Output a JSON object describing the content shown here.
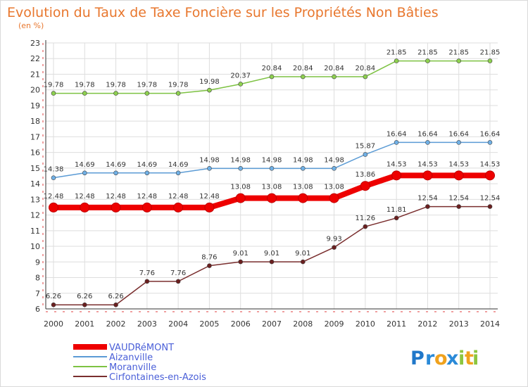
{
  "chart_data": {
    "type": "line",
    "title": "Evolution du Taux de Taxe Foncière sur les Propriétés Non Bâties",
    "subtitle": "(en %)",
    "xlabel": "",
    "ylabel": "",
    "x": [
      "2000",
      "2001",
      "2002",
      "2003",
      "2004",
      "2005",
      "2006",
      "2007",
      "2008",
      "2009",
      "2010",
      "2011",
      "2012",
      "2013",
      "2014"
    ],
    "ylim": [
      6,
      23
    ],
    "yticks": [
      "6",
      "7",
      "8",
      "9",
      "10",
      "11",
      "12",
      "13",
      "14",
      "15",
      "16",
      "17",
      "18",
      "19",
      "20",
      "21",
      "22",
      "23"
    ],
    "grid": true,
    "legend_position": "bottom-left",
    "series": [
      {
        "name": "Moranville",
        "color": "#7dc242",
        "dotFill": "#8ed14f",
        "highlight": false,
        "values": [
          19.78,
          19.78,
          19.78,
          19.78,
          19.78,
          19.98,
          20.37,
          20.84,
          20.84,
          20.84,
          20.84,
          21.85,
          21.85,
          21.85,
          21.85
        ],
        "labels": [
          "19.78",
          "19.78",
          "19.78",
          "19.78",
          "19.78",
          "19.98",
          "20.37",
          "20.84",
          "20.84",
          "20.84",
          "20.84",
          "21.85",
          "21.85",
          "21.85",
          "21.85"
        ]
      },
      {
        "name": "Aizanville",
        "color": "#5b9bd5",
        "dotFill": "#6fb0e6",
        "highlight": false,
        "values": [
          14.38,
          14.69,
          14.69,
          14.69,
          14.69,
          14.98,
          14.98,
          14.98,
          14.98,
          14.98,
          15.87,
          16.64,
          16.64,
          16.64,
          16.64
        ],
        "labels": [
          "14.38",
          "14.69",
          "14.69",
          "14.69",
          "14.69",
          "14.98",
          "14.98",
          "14.98",
          "14.98",
          "14.98",
          "15.87",
          "16.64",
          "16.64",
          "16.64",
          "16.64"
        ]
      },
      {
        "name": "Cirfontaines-en-Azois",
        "color": "#7a2e2e",
        "dotFill": "#6b1f1f",
        "highlight": false,
        "values": [
          6.26,
          6.26,
          6.26,
          7.76,
          7.76,
          8.76,
          9.01,
          9.01,
          9.01,
          9.93,
          11.26,
          11.81,
          12.54,
          12.54,
          12.54
        ],
        "labels": [
          "6.26",
          "6.26",
          "6.26",
          "7.76",
          "7.76",
          "8.76",
          "9.01",
          "9.01",
          "9.01",
          "9.93",
          "11.26",
          "11.81",
          "12.54",
          "12.54",
          "12.54"
        ]
      },
      {
        "name": "VAUDRéMONT",
        "color": "#ee0000",
        "dotFill": "#ee0000",
        "highlight": true,
        "values": [
          12.48,
          12.48,
          12.48,
          12.48,
          12.48,
          12.48,
          13.08,
          13.08,
          13.08,
          13.08,
          13.86,
          14.53,
          14.53,
          14.53,
          14.53
        ],
        "labels": [
          "12.48",
          "12.48",
          "12.48",
          "12.48",
          "12.48",
          "12.48",
          "13.08",
          "13.08",
          "13.08",
          "13.08",
          "13.86",
          "14.53",
          "14.53",
          "14.53",
          "14.53"
        ]
      }
    ],
    "legend": [
      {
        "name": "VAUDRéMONT",
        "color": "#ee0000",
        "thick": true
      },
      {
        "name": "Aizanville",
        "color": "#5b9bd5",
        "thick": false
      },
      {
        "name": "Moranville",
        "color": "#7dc242",
        "thick": false
      },
      {
        "name": "Cirfontaines-en-Azois",
        "color": "#7a2e2e",
        "thick": false
      }
    ]
  },
  "brand": {
    "letters": [
      "P",
      "r",
      "o",
      "x",
      "i",
      "t",
      "i"
    ],
    "colors": [
      "#1f77c9",
      "#2a8ad8",
      "#f0a21d",
      "#2a8ad8",
      "#8cc63f",
      "#f0a21d",
      "#8cc63f"
    ]
  }
}
